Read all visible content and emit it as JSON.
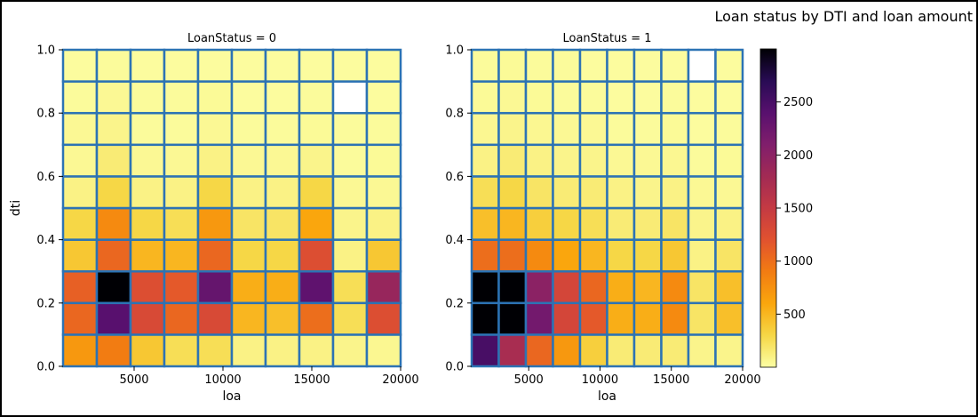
{
  "figure_title": "Loan status by DTI and loan amount",
  "chart_data": [
    {
      "type": "heatmap",
      "title": "LoanStatus = 0",
      "xlabel": "loa",
      "ylabel": "dti",
      "x_ticks": [
        "5000",
        "10000",
        "15000",
        "20000"
      ],
      "y_ticks": [
        "0.0",
        "0.2",
        "0.4",
        "0.6",
        "0.8",
        "1.0"
      ],
      "xlim": [
        1000,
        20000
      ],
      "ylim": [
        0.0,
        1.0
      ],
      "x_bins": 10,
      "y_bins": 10,
      "grid": true,
      "counts_rows_from_bottom": [
        [
          700,
          900,
          400,
          250,
          250,
          100,
          100,
          100,
          80,
          60
        ],
        [
          1050,
          2400,
          1300,
          1050,
          1300,
          500,
          450,
          1000,
          250,
          1250
        ],
        [
          1100,
          3000,
          1250,
          1150,
          2300,
          550,
          550,
          2350,
          250,
          1900
        ],
        [
          400,
          1050,
          500,
          500,
          1050,
          300,
          300,
          1250,
          100,
          400
        ],
        [
          300,
          800,
          300,
          250,
          700,
          200,
          200,
          600,
          80,
          100
        ],
        [
          100,
          300,
          100,
          100,
          300,
          100,
          100,
          300,
          50,
          50
        ],
        [
          50,
          150,
          50,
          50,
          100,
          50,
          50,
          80,
          30,
          40
        ],
        [
          50,
          80,
          30,
          30,
          50,
          30,
          30,
          40,
          30,
          30
        ],
        [
          30,
          50,
          30,
          30,
          40,
          20,
          20,
          30,
          null,
          20
        ],
        [
          20,
          30,
          20,
          20,
          20,
          20,
          20,
          20,
          20,
          20
        ]
      ]
    },
    {
      "type": "heatmap",
      "title": "LoanStatus = 1",
      "xlabel": "loa",
      "ylabel": "",
      "x_ticks": [
        "5000",
        "10000",
        "15000",
        "20000"
      ],
      "y_ticks": [
        "0.0",
        "0.2",
        "0.4",
        "0.6",
        "0.8",
        "1.0"
      ],
      "xlim": [
        1000,
        20000
      ],
      "ylim": [
        0.0,
        1.0
      ],
      "x_bins": 10,
      "y_bins": 10,
      "grid": true,
      "counts_rows_from_bottom": [
        [
          2500,
          1750,
          1050,
          700,
          350,
          150,
          150,
          150,
          80,
          80
        ],
        [
          3000,
          3000,
          2200,
          1350,
          1150,
          550,
          550,
          800,
          200,
          450
        ],
        [
          3000,
          3000,
          2000,
          1350,
          1050,
          550,
          500,
          800,
          200,
          450
        ],
        [
          1000,
          1000,
          800,
          600,
          500,
          300,
          300,
          400,
          100,
          200
        ],
        [
          450,
          500,
          350,
          300,
          250,
          150,
          150,
          200,
          80,
          100
        ],
        [
          250,
          300,
          200,
          150,
          150,
          100,
          80,
          100,
          50,
          50
        ],
        [
          100,
          150,
          100,
          80,
          80,
          50,
          50,
          60,
          30,
          40
        ],
        [
          60,
          80,
          60,
          50,
          50,
          30,
          30,
          40,
          20,
          30
        ],
        [
          40,
          50,
          40,
          30,
          30,
          20,
          20,
          30,
          20,
          20
        ],
        [
          30,
          40,
          30,
          30,
          20,
          20,
          20,
          20,
          null,
          20
        ]
      ]
    }
  ],
  "colorbar": {
    "colormap": "inferno_r",
    "min": 0,
    "max": 3000,
    "ticks": [
      500,
      1000,
      1500,
      2000,
      2500
    ],
    "tick_labels": [
      "500",
      "1000",
      "1500",
      "2000",
      "2500"
    ]
  },
  "colors": {
    "cell_edge": "#2c73b4",
    "missing_cell": "#ffffff"
  }
}
